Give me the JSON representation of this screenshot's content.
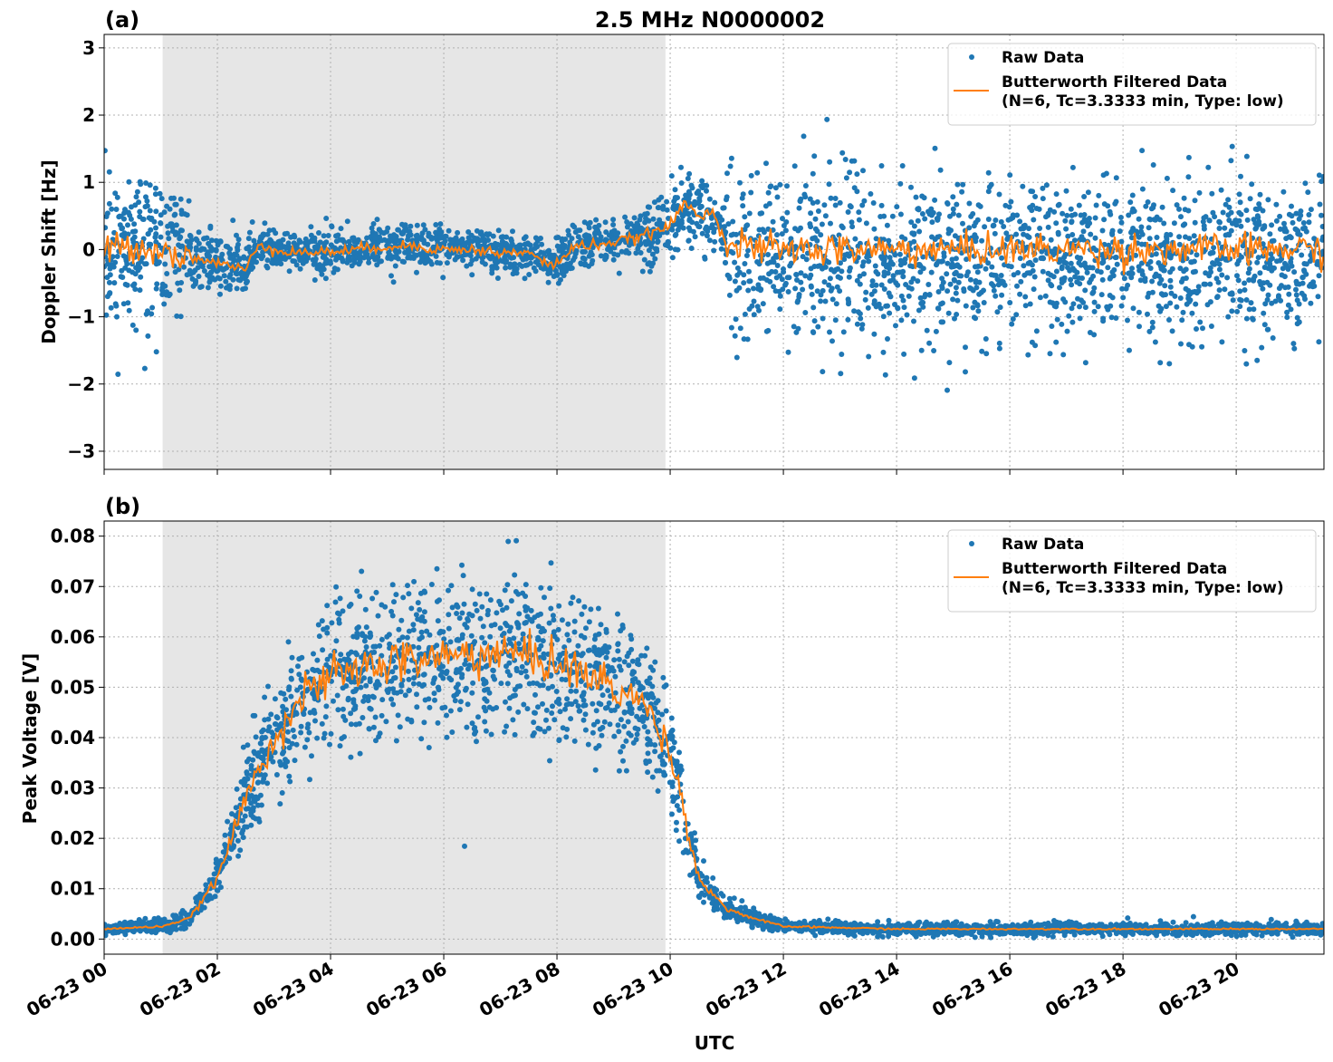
{
  "colors": {
    "raw": "#1f77b4",
    "filtered": "#ff7f0e",
    "shade": "#e6e6e6"
  },
  "chart_data": [
    {
      "type": "scatter",
      "panel_label": "(a)",
      "title": "2.5 MHz N0000002",
      "xlabel": "",
      "ylabel": "Doppler Shift [Hz]",
      "xlim": [
        "06-23 00:00",
        "06-23 21:33"
      ],
      "ylim": [
        -3.27,
        3.2
      ],
      "yticks": [
        "3",
        "2",
        "1",
        "0",
        "−1",
        "−2",
        "−3"
      ],
      "ytick_values": [
        3,
        2,
        1,
        0,
        -1,
        -2,
        -3
      ],
      "grid": true,
      "shaded_interval": [
        "06-23 01:02",
        "06-23 09:55"
      ],
      "legend": {
        "placement": "top-right",
        "entries": [
          "Raw Data",
          "Butterworth Filtered Data",
          "(N=6, Tc=3.3333 min, Type: low)"
        ]
      },
      "series": [
        {
          "name": "Raw Data",
          "kind": "scatter",
          "spread": [
            {
              "from": "06-23 00:00",
              "to": "06-23 01:30",
              "half_width": 1.2
            },
            {
              "from": "06-23 01:30",
              "to": "06-23 02:40",
              "half_width": 0.5
            },
            {
              "from": "06-23 02:40",
              "to": "06-23 09:30",
              "half_width": 0.35
            },
            {
              "from": "06-23 09:30",
              "to": "06-23 11:00",
              "half_width": 0.6
            },
            {
              "from": "06-23 11:00",
              "to": "06-23 21:33",
              "half_width": 1.3
            }
          ]
        },
        {
          "name": "Butterworth Filtered Data",
          "kind": "line",
          "x": [
            "06-23 00:00",
            "06-23 00:30",
            "06-23 01:00",
            "06-23 01:30",
            "06-23 02:00",
            "06-23 02:30",
            "06-23 02:45",
            "06-23 03:00",
            "06-23 03:30",
            "06-23 04:00",
            "06-23 04:30",
            "06-23 05:00",
            "06-23 05:30",
            "06-23 06:00",
            "06-23 06:30",
            "06-23 07:00",
            "06-23 07:30",
            "06-23 07:55",
            "06-23 08:20",
            "06-23 09:00",
            "06-23 09:30",
            "06-23 10:00",
            "06-23 10:15",
            "06-23 10:30",
            "06-23 10:45",
            "06-23 11:00",
            "06-23 12:00",
            "06-23 13:00",
            "06-23 14:00",
            "06-23 15:00",
            "06-23 16:00",
            "06-23 17:00",
            "06-23 18:00",
            "06-23 19:00",
            "06-23 20:00",
            "06-23 21:00",
            "06-23 21:33"
          ],
          "y": [
            0.0,
            0.05,
            0.0,
            -0.1,
            -0.2,
            -0.3,
            0.1,
            0.0,
            -0.05,
            -0.03,
            0.0,
            0.05,
            0.05,
            0.0,
            0.0,
            -0.05,
            -0.05,
            -0.25,
            0.05,
            0.1,
            0.2,
            0.35,
            0.7,
            0.5,
            0.6,
            0.05,
            0.0,
            0.0,
            0.0,
            0.0,
            0.0,
            0.0,
            0.0,
            0.0,
            0.0,
            0.0,
            0.0
          ]
        }
      ]
    },
    {
      "type": "scatter",
      "panel_label": "(b)",
      "xlabel": "UTC",
      "ylabel": "Peak Voltage [V]",
      "xlim": [
        "06-23 00:00",
        "06-23 21:33"
      ],
      "ylim": [
        -0.003,
        0.083
      ],
      "yticks": [
        "0.08",
        "0.07",
        "0.06",
        "0.05",
        "0.04",
        "0.03",
        "0.02",
        "0.01",
        "0.00"
      ],
      "ytick_values": [
        0.08,
        0.07,
        0.06,
        0.05,
        0.04,
        0.03,
        0.02,
        0.01,
        0.0
      ],
      "xticks": [
        "06-23 00",
        "06-23 02",
        "06-23 04",
        "06-23 06",
        "06-23 08",
        "06-23 10",
        "06-23 12",
        "06-23 14",
        "06-23 16",
        "06-23 18",
        "06-23 20"
      ],
      "grid": true,
      "shaded_interval": [
        "06-23 01:02",
        "06-23 09:55"
      ],
      "legend": {
        "placement": "top-right",
        "entries": [
          "Raw Data",
          "Butterworth Filtered Data",
          "(N=6, Tc=3.3333 min, Type: low)"
        ]
      },
      "series": [
        {
          "name": "Raw Data",
          "kind": "scatter",
          "relative_spread": 0.27
        },
        {
          "name": "Butterworth Filtered Data",
          "kind": "line",
          "x": [
            "06-23 00:00",
            "06-23 01:00",
            "06-23 01:30",
            "06-23 02:00",
            "06-23 02:30",
            "06-23 03:00",
            "06-23 03:30",
            "06-23 04:00",
            "06-23 05:00",
            "06-23 06:00",
            "06-23 07:00",
            "06-23 08:00",
            "06-23 09:00",
            "06-23 09:30",
            "06-23 09:55",
            "06-23 10:12",
            "06-23 10:30",
            "06-23 11:00",
            "06-23 11:30",
            "06-23 12:00",
            "06-23 14:00",
            "06-23 16:00",
            "06-23 18:00",
            "06-23 20:00",
            "06-23 21:33"
          ],
          "y": [
            0.002,
            0.0025,
            0.004,
            0.012,
            0.028,
            0.04,
            0.048,
            0.052,
            0.055,
            0.056,
            0.057,
            0.055,
            0.05,
            0.047,
            0.04,
            0.028,
            0.012,
            0.006,
            0.004,
            0.0025,
            0.002,
            0.002,
            0.002,
            0.002,
            0.002
          ]
        }
      ]
    }
  ]
}
